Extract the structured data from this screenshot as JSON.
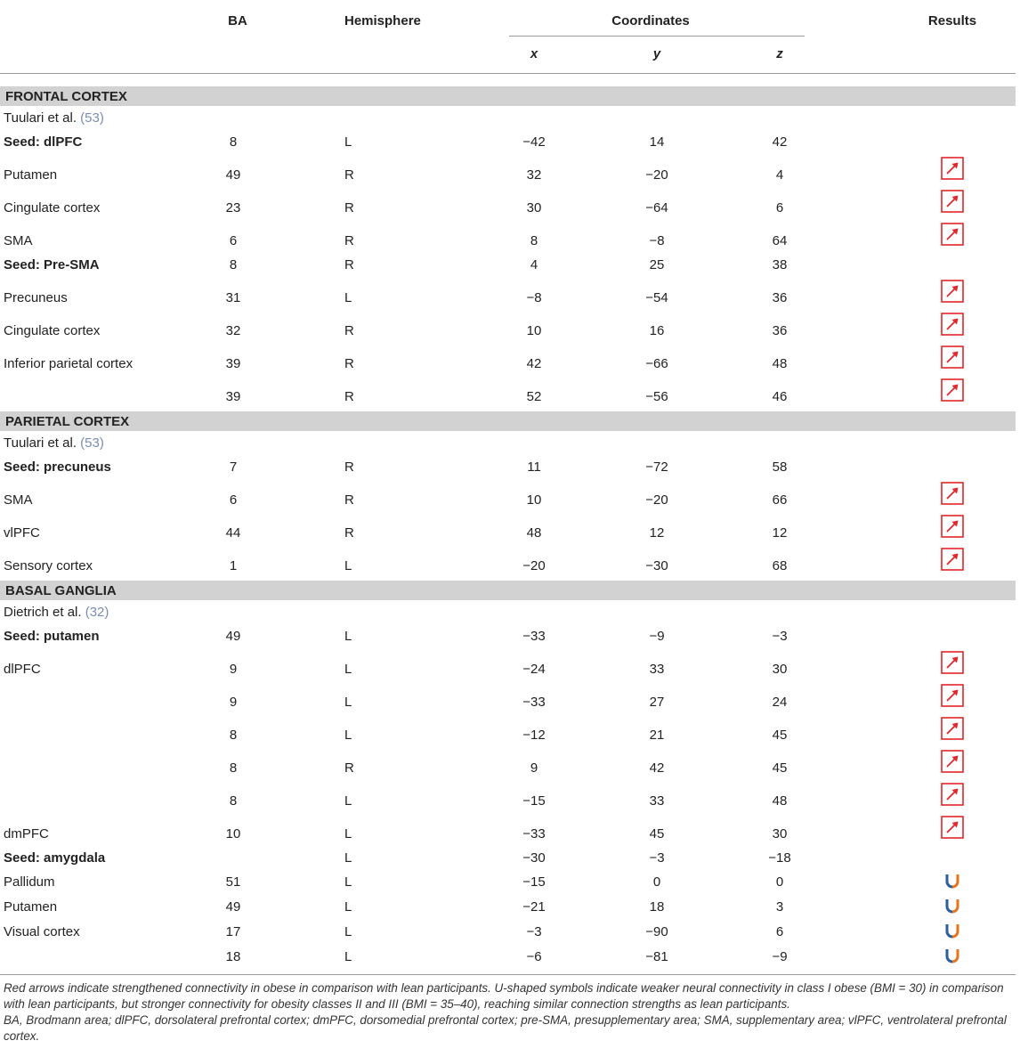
{
  "table": {
    "header": {
      "ba": "BA",
      "hemisphere": "Hemisphere",
      "coordinates": "Coordinates",
      "x": "x",
      "y": "y",
      "z": "z",
      "results": "Results"
    },
    "sections": [
      {
        "title": "FRONTAL CORTEX",
        "rows": [
          {
            "citation": {
              "author": "Tuulari et al.",
              "ref": "(53)"
            }
          },
          {
            "region": "Seed: dlPFC",
            "bold": true,
            "ba": "8",
            "hemisphere": "L",
            "x": "−42",
            "y": "14",
            "z": "42"
          },
          {
            "region": "Putamen",
            "ba": "49",
            "hemisphere": "R",
            "x": "32",
            "y": "−20",
            "z": "4",
            "result": "arrow"
          },
          {
            "region": "Cingulate cortex",
            "ba": "23",
            "hemisphere": "R",
            "x": "30",
            "y": "−64",
            "z": "6",
            "result": "arrow"
          },
          {
            "region": "SMA",
            "ba": "6",
            "hemisphere": "R",
            "x": "8",
            "y": "−8",
            "z": "64",
            "result": "arrow"
          },
          {
            "region": "Seed: Pre-SMA",
            "bold": true,
            "ba": "8",
            "hemisphere": "R",
            "x": "4",
            "y": "25",
            "z": "38"
          },
          {
            "region": "Precuneus",
            "ba": "31",
            "hemisphere": "L",
            "x": "−8",
            "y": "−54",
            "z": "36",
            "result": "arrow"
          },
          {
            "region": "Cingulate cortex",
            "ba": "32",
            "hemisphere": "R",
            "x": "10",
            "y": "16",
            "z": "36",
            "result": "arrow"
          },
          {
            "region": "Inferior parietal cortex",
            "ba": "39",
            "hemisphere": "R",
            "x": "42",
            "y": "−66",
            "z": "48",
            "result": "arrow"
          },
          {
            "ba": "39",
            "hemisphere": "R",
            "x": "52",
            "y": "−56",
            "z": "46",
            "result": "arrow"
          }
        ]
      },
      {
        "title": "PARIETAL CORTEX",
        "rows": [
          {
            "citation": {
              "author": "Tuulari et al.",
              "ref": "(53)"
            }
          },
          {
            "region": "Seed: precuneus",
            "bold": true,
            "ba": "7",
            "hemisphere": "R",
            "x": "11",
            "y": "−72",
            "z": "58"
          },
          {
            "region": "SMA",
            "ba": "6",
            "hemisphere": "R",
            "x": "10",
            "y": "−20",
            "z": "66",
            "result": "arrow"
          },
          {
            "region": "vlPFC",
            "ba": "44",
            "hemisphere": "R",
            "x": "48",
            "y": "12",
            "z": "12",
            "result": "arrow"
          },
          {
            "region": "Sensory cortex",
            "ba": "1",
            "hemisphere": "L",
            "x": "−20",
            "y": "−30",
            "z": "68",
            "result": "arrow"
          }
        ]
      },
      {
        "title": "BASAL GANGLIA",
        "rows": [
          {
            "citation": {
              "author": "Dietrich et al.",
              "ref": "(32)"
            }
          },
          {
            "region": "Seed: putamen",
            "bold": true,
            "ba": "49",
            "hemisphere": "L",
            "x": "−33",
            "y": "−9",
            "z": "−3"
          },
          {
            "region": "dlPFC",
            "ba": "9",
            "hemisphere": "L",
            "x": "−24",
            "y": "33",
            "z": "30",
            "result": "arrow"
          },
          {
            "ba": "9",
            "hemisphere": "L",
            "x": "−33",
            "y": "27",
            "z": "24",
            "result": "arrow"
          },
          {
            "ba": "8",
            "hemisphere": "L",
            "x": "−12",
            "y": "21",
            "z": "45",
            "result": "arrow"
          },
          {
            "ba": "8",
            "hemisphere": "R",
            "x": "9",
            "y": "42",
            "z": "45",
            "result": "arrow"
          },
          {
            "ba": "8",
            "hemisphere": "L",
            "x": "−15",
            "y": "33",
            "z": "48",
            "result": "arrow"
          },
          {
            "region": "dmPFC",
            "ba": "10",
            "hemisphere": "L",
            "x": "−33",
            "y": "45",
            "z": "30",
            "result": "arrow"
          },
          {
            "region": "Seed: amygdala",
            "bold": true,
            "hemisphere": "L",
            "x": "−30",
            "y": "−3",
            "z": "−18"
          },
          {
            "region": "Pallidum",
            "ba": "51",
            "hemisphere": "L",
            "x": "−15",
            "y": "0",
            "z": "0",
            "result": "u-shape"
          },
          {
            "region": "Putamen",
            "ba": "49",
            "hemisphere": "L",
            "x": "−21",
            "y": "18",
            "z": "3",
            "result": "u-shape"
          },
          {
            "region": "Visual cortex",
            "ba": "17",
            "hemisphere": "L",
            "x": "−3",
            "y": "−90",
            "z": "6",
            "result": "u-shape"
          },
          {
            "ba": "18",
            "hemisphere": "L",
            "x": "−6",
            "y": "−81",
            "z": "−9",
            "result": "u-shape"
          }
        ]
      }
    ],
    "notes": [
      "Red arrows indicate strengthened connectivity in obese in comparison with lean participants. U-shaped symbols indicate weaker neural connectivity in class I obese (BMI = 30) in comparison with lean participants, but stronger connectivity for obesity classes II and III (BMI = 35–40), reaching similar connection strengths as lean participants.",
      "BA, Brodmann area; dlPFC, dorsolateral prefrontal cortex; dmPFC, dorsomedial prefrontal cortex; pre-SMA, presupplementary area; SMA, supplementary area; vlPFC, ventrolateral prefrontal cortex."
    ]
  }
}
